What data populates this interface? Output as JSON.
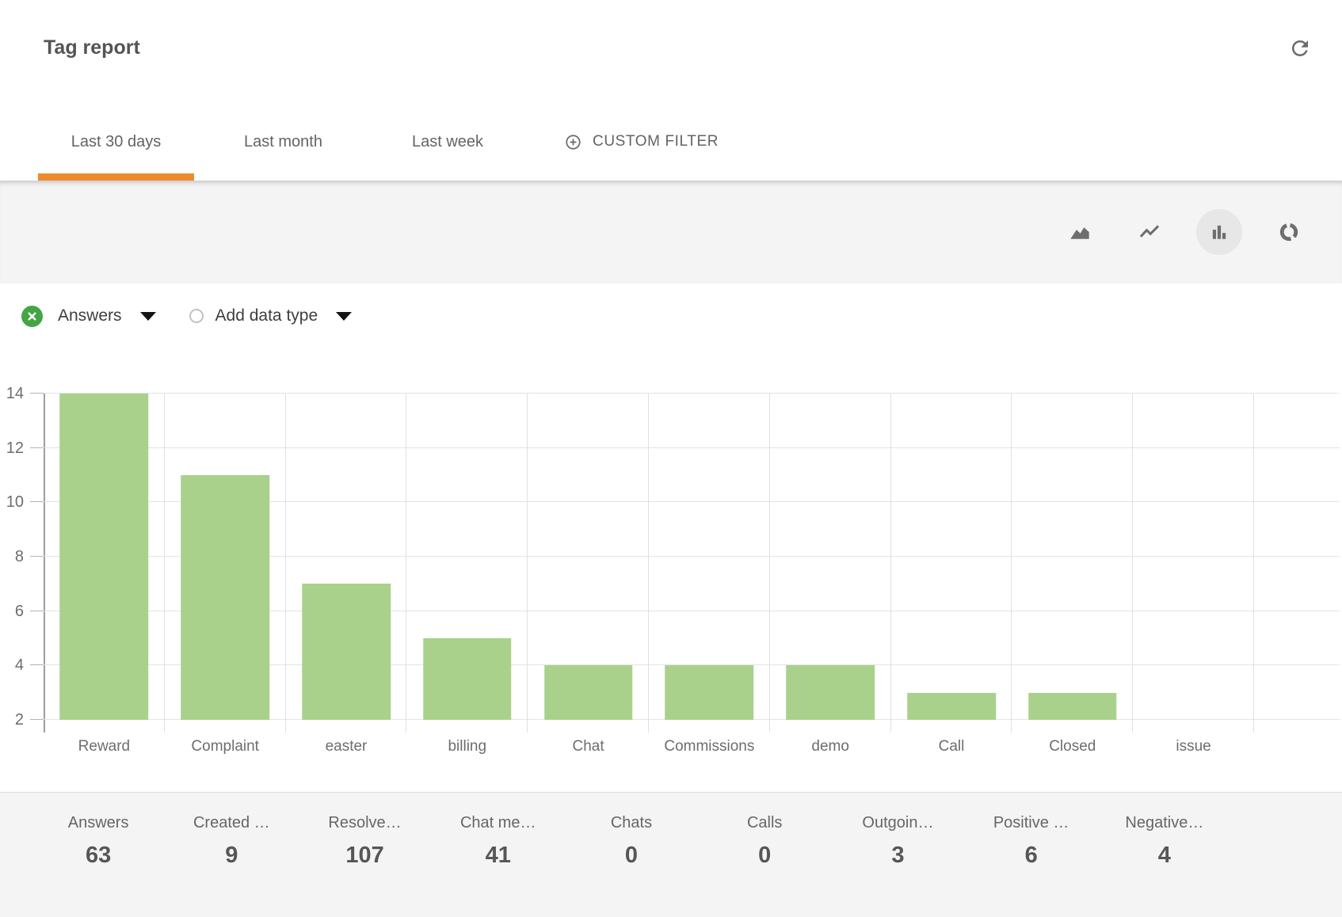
{
  "header": {
    "title": "Tag report"
  },
  "tabs": [
    {
      "label": "Last 30 days",
      "active": true
    },
    {
      "label": "Last month",
      "active": false
    },
    {
      "label": "Last week",
      "active": false
    }
  ],
  "custom_filter": {
    "label": "CUSTOM FILTER",
    "icon": "plus-circle-icon"
  },
  "chart_toolbar": {
    "types": [
      "area-chart",
      "line-chart",
      "bar-chart",
      "donut-chart"
    ],
    "selected": "bar-chart"
  },
  "filter_bar": {
    "active_series": "Answers",
    "add_data_type_label": "Add data type"
  },
  "chart_data": {
    "type": "bar",
    "series_name": "Answers",
    "categories": [
      "Reward",
      "Complaint",
      "easter",
      "billing",
      "Chat",
      "Commissions",
      "demo",
      "Call",
      "Closed",
      "issue"
    ],
    "values": [
      14,
      11,
      7,
      5,
      4,
      4,
      4,
      3,
      3,
      2
    ],
    "ylim": [
      2,
      14
    ],
    "yticks": [
      2,
      4,
      6,
      8,
      10,
      12,
      14
    ],
    "title": "",
    "xlabel": "",
    "ylabel": "",
    "grid": true,
    "legend_position": "none",
    "bar_color": "#a9d18c"
  },
  "stats": [
    {
      "label": "Answers",
      "value": "63"
    },
    {
      "label": "Created …",
      "value": "9"
    },
    {
      "label": "Resolve…",
      "value": "107"
    },
    {
      "label": "Chat me…",
      "value": "41"
    },
    {
      "label": "Chats",
      "value": "0"
    },
    {
      "label": "Calls",
      "value": "0"
    },
    {
      "label": "Outgoin…",
      "value": "3"
    },
    {
      "label": "Positive …",
      "value": "6"
    },
    {
      "label": "Negative…",
      "value": "4"
    }
  ],
  "colors": {
    "accent_orange": "#ef8b2d",
    "bar_green": "#a9d18c",
    "remove_filter_green": "#44a544"
  }
}
